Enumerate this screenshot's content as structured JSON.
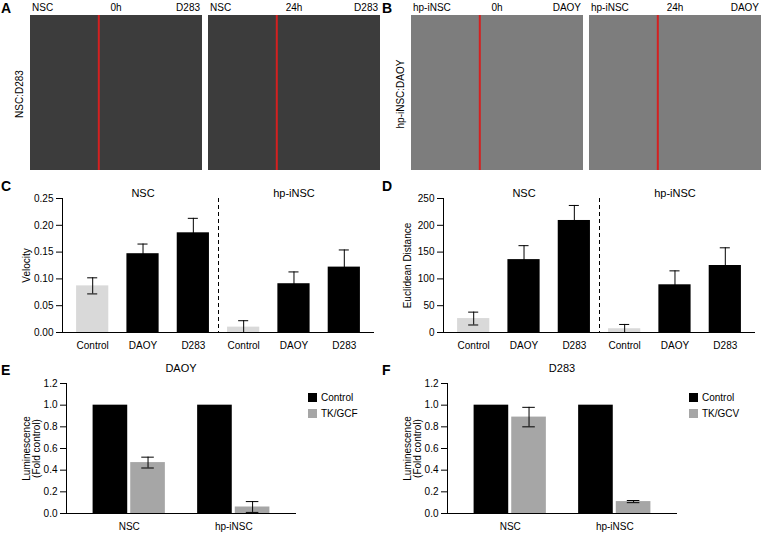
{
  "image_panels": [
    {
      "panel": "A",
      "side_label": "NSC:D283",
      "images": [
        {
          "left": "NSC",
          "time": "0h",
          "right": "D283"
        },
        {
          "left": "NSC",
          "time": "24h",
          "right": "D283"
        }
      ]
    },
    {
      "panel": "B",
      "side_label": "hp-iNSC:DAOY",
      "images": [
        {
          "left": "hp-iNSC",
          "time": "0h",
          "right": "DAOY"
        },
        {
          "left": "hp-iNSC",
          "time": "24h",
          "right": "DAOY"
        }
      ]
    }
  ],
  "chart_data": [
    {
      "panel": "C",
      "type": "bar",
      "ylabel": "Velocity",
      "ylim": [
        0,
        0.25
      ],
      "yticks": [
        {
          "value": 0,
          "label": "0.00"
        },
        0.05,
        {
          "value": 0.1,
          "label": "0.10"
        },
        0.15,
        {
          "value": 0.2,
          "label": "0.20"
        },
        0.25
      ],
      "groups": [
        {
          "label": "NSC",
          "categories": [
            "Control",
            "DAOY",
            "D283"
          ],
          "values": [
            0.087,
            0.147,
            0.186
          ],
          "errors": [
            0.015,
            0.018,
            0.027
          ],
          "colors": [
            "#d9d9d9",
            "#000000",
            "#000000"
          ]
        },
        {
          "label": "hp-iNSC",
          "categories": [
            "Control",
            "DAOY",
            "D283"
          ],
          "values": [
            0.01,
            0.091,
            0.122
          ],
          "errors": [
            0.012,
            0.022,
            0.032
          ],
          "colors": [
            "#d9d9d9",
            "#000000",
            "#000000"
          ]
        }
      ]
    },
    {
      "panel": "D",
      "type": "bar",
      "ylabel": "Euclidean Distance",
      "ylim": [
        0,
        250
      ],
      "yticks": [
        0,
        50,
        100,
        150,
        200,
        250
      ],
      "groups": [
        {
          "label": "NSC",
          "categories": [
            "Control",
            "DAOY",
            "D283"
          ],
          "values": [
            26,
            136,
            209
          ],
          "errors": [
            12,
            26,
            28
          ],
          "colors": [
            "#d9d9d9",
            "#000000",
            "#000000"
          ]
        },
        {
          "label": "hp-iNSC",
          "categories": [
            "Control",
            "DAOY",
            "D283"
          ],
          "values": [
            7,
            89,
            125
          ],
          "errors": [
            8,
            26,
            33
          ],
          "colors": [
            "#d9d9d9",
            "#000000",
            "#000000"
          ]
        }
      ]
    },
    {
      "panel": "E",
      "type": "bar",
      "title": "DAOY",
      "ylabel": [
        "Luminescence",
        "(Fold control)"
      ],
      "ylim": [
        0,
        1.2
      ],
      "yticks": [
        {
          "value": 0,
          "label": "0.0"
        },
        0.2,
        0.4,
        0.6,
        0.8,
        {
          "value": 1,
          "label": "1.0"
        },
        1.2
      ],
      "categories": [
        "NSC",
        "hp-iNSC"
      ],
      "series": [
        {
          "name": "Control",
          "color": "#000000",
          "values": [
            1.0,
            1.0
          ]
        },
        {
          "name": "TK/GCF",
          "color": "#a6a6a6",
          "values": [
            0.47,
            0.06
          ],
          "errors": [
            0.05,
            0.05
          ]
        }
      ],
      "legend": "right"
    },
    {
      "panel": "F",
      "type": "bar",
      "title": "D283",
      "ylabel": [
        "Luminescence",
        "(Fold control)"
      ],
      "ylim": [
        0,
        1.2
      ],
      "yticks": [
        {
          "value": 0,
          "label": "0.0"
        },
        0.2,
        0.4,
        0.6,
        0.8,
        {
          "value": 1,
          "label": "1.0"
        },
        1.2
      ],
      "categories": [
        "NSC",
        "hp-iNSC"
      ],
      "series": [
        {
          "name": "Control",
          "color": "#000000",
          "values": [
            1.0,
            1.0
          ]
        },
        {
          "name": "TK/GCV",
          "color": "#a6a6a6",
          "values": [
            0.89,
            0.11
          ],
          "errors": [
            0.09,
            0.01
          ]
        }
      ],
      "legend": "right"
    }
  ]
}
